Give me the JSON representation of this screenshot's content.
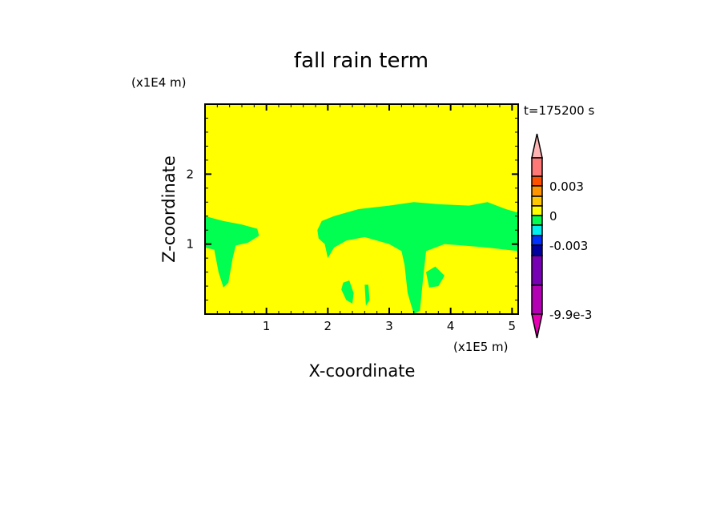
{
  "chart_data": {
    "type": "heatmap",
    "title": "fall rain term",
    "xlabel": "X-coordinate",
    "ylabel": "Z-coordinate",
    "x_unit_label": "(x1E5 m)",
    "y_unit_label": "(x1E4 m)",
    "time_label": "t=175200 s",
    "xlim": [
      0,
      5.1
    ],
    "ylim": [
      0,
      3.0
    ],
    "xticks": [
      1,
      2,
      3,
      4,
      5
    ],
    "yticks": [
      1,
      2
    ],
    "background_level_color": "#ffff00",
    "colorbar": {
      "colors": [
        "#ffb4b4",
        "#ff7878",
        "#ff5000",
        "#ff9600",
        "#ffc800",
        "#ffff00",
        "#00ff50",
        "#00f0f0",
        "#0032ff",
        "#0000a0",
        "#7800b4",
        "#b400b4",
        "#e600b4"
      ],
      "tick_labels": [
        "0.003",
        "0",
        "-0.003",
        "-9.9e-3"
      ],
      "extend": "both"
    },
    "regions": [
      {
        "color": "#00ff50",
        "polygon": [
          [
            0,
            1.4
          ],
          [
            0.3,
            1.33
          ],
          [
            0.6,
            1.28
          ],
          [
            0.85,
            1.22
          ],
          [
            0.88,
            1.12
          ],
          [
            0.7,
            1.02
          ],
          [
            0.5,
            0.98
          ],
          [
            0.45,
            0.8
          ],
          [
            0.38,
            0.45
          ],
          [
            0.3,
            0.38
          ],
          [
            0.22,
            0.6
          ],
          [
            0.15,
            0.92
          ],
          [
            0,
            0.95
          ]
        ]
      },
      {
        "color": "#00ff50",
        "polygon": [
          [
            1.83,
            1.2
          ],
          [
            1.9,
            1.33
          ],
          [
            2.1,
            1.4
          ],
          [
            2.5,
            1.5
          ],
          [
            3.0,
            1.55
          ],
          [
            3.4,
            1.6
          ],
          [
            3.8,
            1.57
          ],
          [
            4.3,
            1.55
          ],
          [
            4.6,
            1.6
          ],
          [
            4.9,
            1.5
          ],
          [
            5.1,
            1.45
          ],
          [
            5.1,
            0.9
          ],
          [
            4.6,
            0.95
          ],
          [
            4.2,
            0.98
          ],
          [
            3.9,
            1.0
          ],
          [
            3.6,
            0.9
          ],
          [
            3.55,
            0.5
          ],
          [
            3.5,
            0.05
          ],
          [
            3.4,
            0.0
          ],
          [
            3.3,
            0.3
          ],
          [
            3.25,
            0.7
          ],
          [
            3.2,
            0.9
          ],
          [
            3.0,
            1.0
          ],
          [
            2.6,
            1.1
          ],
          [
            2.3,
            1.05
          ],
          [
            2.1,
            0.95
          ],
          [
            2.0,
            0.8
          ],
          [
            1.95,
            1.0
          ],
          [
            1.85,
            1.08
          ]
        ]
      },
      {
        "color": "#00ff50",
        "polygon": [
          [
            2.25,
            0.45
          ],
          [
            2.35,
            0.48
          ],
          [
            2.42,
            0.3
          ],
          [
            2.4,
            0.15
          ],
          [
            2.3,
            0.2
          ],
          [
            2.22,
            0.35
          ]
        ]
      },
      {
        "color": "#00ff50",
        "polygon": [
          [
            2.6,
            0.42
          ],
          [
            2.66,
            0.42
          ],
          [
            2.68,
            0.2
          ],
          [
            2.62,
            0.12
          ]
        ]
      },
      {
        "color": "#00ff50",
        "polygon": [
          [
            3.6,
            0.6
          ],
          [
            3.75,
            0.68
          ],
          [
            3.9,
            0.55
          ],
          [
            3.8,
            0.4
          ],
          [
            3.65,
            0.38
          ]
        ]
      }
    ]
  }
}
